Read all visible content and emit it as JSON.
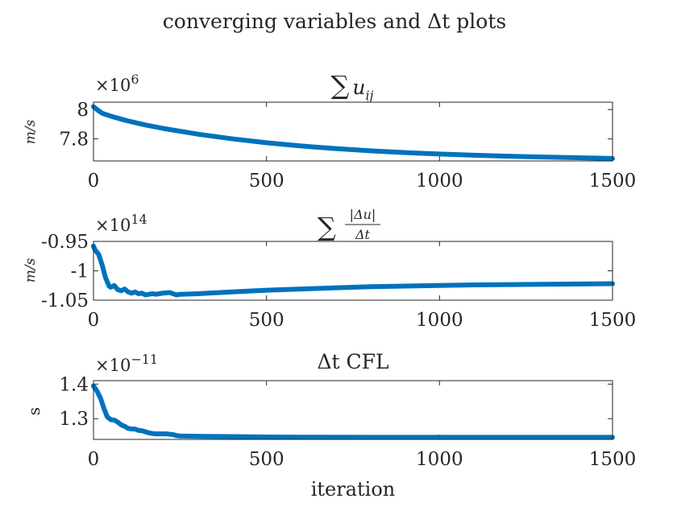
{
  "figure": {
    "title": "converging variables and Δt plots",
    "xlabel": "iteration"
  },
  "chart_data": [
    {
      "type": "line",
      "title": "Σ u_ij",
      "title_parts": {
        "sym": "∑",
        "var": "u",
        "sub": "ij"
      },
      "ylabel": "m/s",
      "y_multiplier": "×10^6",
      "y_multiplier_parts": {
        "base": "×10",
        "exp": "6"
      },
      "xlim": [
        0,
        1500
      ],
      "ylim": [
        7.65,
        8.05
      ],
      "xticks": [
        "0",
        "500",
        "1000",
        "1500"
      ],
      "yticks": [
        {
          "value": 8.0,
          "label": "8"
        },
        {
          "value": 7.8,
          "label": "7.8"
        }
      ],
      "color": "#0072bd",
      "series": [
        {
          "x": [
            0,
            10,
            25,
            50,
            75,
            100,
            150,
            200,
            300,
            400,
            500,
            600,
            700,
            800,
            900,
            1000,
            1100,
            1200,
            1300,
            1400,
            1500
          ],
          "y": [
            8.02,
            8.0,
            7.975,
            7.955,
            7.938,
            7.922,
            7.895,
            7.872,
            7.833,
            7.801,
            7.774,
            7.752,
            7.734,
            7.719,
            7.707,
            7.697,
            7.689,
            7.682,
            7.677,
            7.672,
            7.667
          ]
        }
      ]
    },
    {
      "type": "line",
      "title": "Σ |Δu|/Δt",
      "title_parts": {
        "sym": "∑",
        "num": "|Δu|",
        "den": "Δt"
      },
      "ylabel": "m/s",
      "y_multiplier": "×10^14",
      "y_multiplier_parts": {
        "base": "×10",
        "exp": "14"
      },
      "xlim": [
        0,
        1500
      ],
      "ylim": [
        -1.05,
        -0.95
      ],
      "xticks": [
        "0",
        "500",
        "1000",
        "1500"
      ],
      "yticks": [
        {
          "value": -0.95,
          "label": "-0.95"
        },
        {
          "value": -1.0,
          "label": "-1"
        },
        {
          "value": -1.05,
          "label": "-1.05"
        }
      ],
      "color": "#0072bd",
      "series": [
        {
          "x": [
            0,
            5,
            15,
            25,
            35,
            45,
            50,
            60,
            70,
            80,
            90,
            100,
            110,
            120,
            130,
            140,
            150,
            160,
            170,
            180,
            200,
            220,
            240,
            250,
            300,
            400,
            500,
            600,
            700,
            800,
            900,
            1000,
            1100,
            1200,
            1300,
            1400,
            1500
          ],
          "y": [
            -0.958,
            -0.965,
            -0.972,
            -0.99,
            -1.012,
            -1.026,
            -1.028,
            -1.025,
            -1.032,
            -1.034,
            -1.031,
            -1.036,
            -1.038,
            -1.036,
            -1.039,
            -1.038,
            -1.041,
            -1.04,
            -1.039,
            -1.04,
            -1.038,
            -1.037,
            -1.041,
            -1.04,
            -1.039,
            -1.036,
            -1.033,
            -1.031,
            -1.029,
            -1.027,
            -1.026,
            -1.025,
            -1.024,
            -1.0235,
            -1.023,
            -1.0225,
            -1.022
          ]
        }
      ]
    },
    {
      "type": "line",
      "title": "Δt CFL",
      "ylabel": "s",
      "y_multiplier": "×10^-11",
      "y_multiplier_parts": {
        "base": "×10",
        "exp": "−11"
      },
      "xlim": [
        0,
        1500
      ],
      "ylim": [
        1.24,
        1.41
      ],
      "xticks": [
        "0",
        "500",
        "1000",
        "1500"
      ],
      "yticks": [
        {
          "value": 1.4,
          "label": "1.4"
        },
        {
          "value": 1.3,
          "label": "1.3"
        }
      ],
      "color": "#0072bd",
      "series": [
        {
          "x": [
            0,
            10,
            20,
            30,
            40,
            50,
            60,
            70,
            80,
            90,
            100,
            110,
            120,
            130,
            140,
            150,
            160,
            170,
            180,
            190,
            200,
            210,
            220,
            230,
            240,
            250,
            300,
            400,
            500,
            600,
            800,
            1000,
            1200,
            1500
          ],
          "y": [
            1.395,
            1.38,
            1.36,
            1.33,
            1.305,
            1.297,
            1.296,
            1.29,
            1.282,
            1.278,
            1.272,
            1.27,
            1.27,
            1.266,
            1.265,
            1.262,
            1.259,
            1.257,
            1.256,
            1.256,
            1.256,
            1.256,
            1.255,
            1.254,
            1.251,
            1.25,
            1.249,
            1.248,
            1.247,
            1.2465,
            1.246,
            1.246,
            1.246,
            1.246
          ]
        }
      ]
    }
  ]
}
